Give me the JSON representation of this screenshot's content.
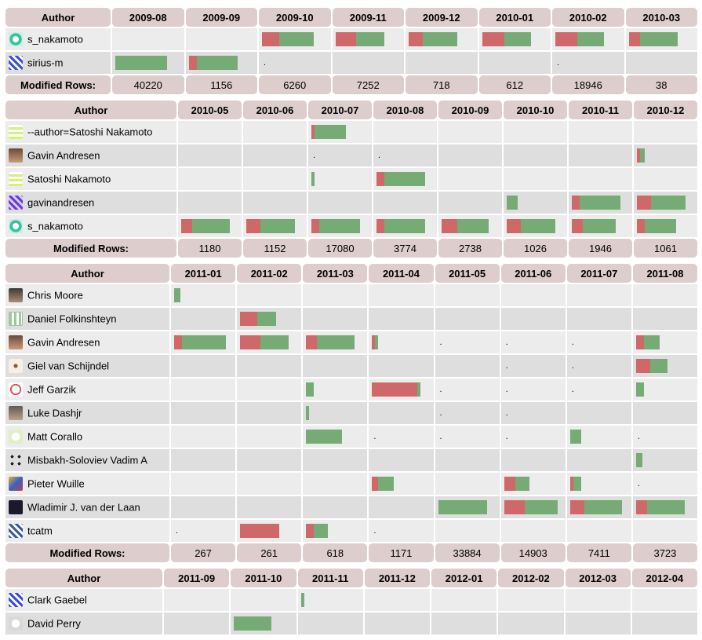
{
  "colors": {
    "header_bg": "#ddcdcd",
    "deleted": "#cf6868",
    "added": "#76ab76",
    "row_a": "#dedede",
    "row_b": "#ececec"
  },
  "labels": {
    "author": "Author",
    "modified_rows": "Modified Rows:"
  },
  "blocks": [
    {
      "months": [
        "2009-08",
        "2009-09",
        "2009-10",
        "2009-11",
        "2009-12",
        "2010-01",
        "2010-02",
        "2010-03"
      ],
      "modified": [
        "40220",
        "1156",
        "6260",
        "7252",
        "718",
        "612",
        "18946",
        "38"
      ],
      "rows": [
        {
          "name": "s_nakamoto",
          "icon": "identicon-teal",
          "cells": [
            null,
            null,
            {
              "d": 22,
              "a": 44
            },
            {
              "d": 26,
              "a": 36
            },
            {
              "d": 18,
              "a": 44
            },
            {
              "d": 28,
              "a": 34
            },
            {
              "d": 28,
              "a": 34
            },
            {
              "d": 14,
              "a": 48
            }
          ]
        },
        {
          "name": "sirius-m",
          "icon": "identicon-blue",
          "cells": [
            {
              "d": 0,
              "a": 66
            },
            {
              "d": 10,
              "a": 52
            },
            "dot",
            null,
            null,
            null,
            "dot",
            null
          ]
        }
      ]
    },
    {
      "months": [
        "2010-05",
        "2010-06",
        "2010-07",
        "2010-08",
        "2010-09",
        "2010-10",
        "2010-11",
        "2010-12"
      ],
      "modified": [
        "1180",
        "1152",
        "17080",
        "3774",
        "2738",
        "1026",
        "1946",
        "1061"
      ],
      "rows": [
        {
          "name": "--author=Satoshi Nakamoto",
          "icon": "identicon-yellow",
          "cells": [
            null,
            null,
            {
              "d": 4,
              "a": 40
            },
            null,
            null,
            null,
            null,
            null
          ]
        },
        {
          "name": "Gavin Andresen",
          "icon": "photo-gavin",
          "cells": [
            null,
            null,
            "dot",
            "dot",
            null,
            null,
            null,
            {
              "d": 4,
              "a": 6
            }
          ]
        },
        {
          "name": "Satoshi Nakamoto",
          "icon": "identicon-yellow",
          "cells": [
            null,
            null,
            {
              "d": 0,
              "a": 4
            },
            {
              "d": 10,
              "a": 52
            },
            null,
            null,
            null,
            null
          ]
        },
        {
          "name": "gavinandresen",
          "icon": "identicon-purple",
          "cells": [
            null,
            null,
            null,
            null,
            null,
            {
              "d": 0,
              "a": 14
            },
            {
              "d": 10,
              "a": 52
            },
            {
              "d": 18,
              "a": 44
            }
          ]
        },
        {
          "name": "s_nakamoto",
          "icon": "identicon-teal",
          "cells": [
            {
              "d": 14,
              "a": 48
            },
            {
              "d": 18,
              "a": 44
            },
            {
              "d": 10,
              "a": 52
            },
            {
              "d": 10,
              "a": 52
            },
            {
              "d": 20,
              "a": 40
            },
            {
              "d": 18,
              "a": 44
            },
            {
              "d": 14,
              "a": 42
            },
            {
              "d": 10,
              "a": 40
            }
          ]
        }
      ]
    },
    {
      "months": [
        "2011-01",
        "2011-02",
        "2011-03",
        "2011-04",
        "2011-05",
        "2011-06",
        "2011-07",
        "2011-08"
      ],
      "modified": [
        "267",
        "261",
        "618",
        "1171",
        "33884",
        "14903",
        "7411",
        "3723"
      ],
      "rows": [
        {
          "name": "Chris Moore",
          "icon": "photo-chris",
          "cells": [
            {
              "d": 0,
              "a": 8
            },
            null,
            null,
            null,
            null,
            null,
            null,
            null
          ]
        },
        {
          "name": "Daniel Folkinshteyn",
          "icon": "identicon-green",
          "cells": [
            null,
            {
              "d": 22,
              "a": 24
            },
            null,
            null,
            null,
            null,
            null,
            null
          ]
        },
        {
          "name": "Gavin Andresen",
          "icon": "photo-gavin",
          "cells": [
            {
              "d": 10,
              "a": 56
            },
            {
              "d": 26,
              "a": 36
            },
            {
              "d": 14,
              "a": 48
            },
            {
              "d": 4,
              "a": 4
            },
            "dot",
            "dot",
            "dot",
            {
              "d": 10,
              "a": 20
            }
          ]
        },
        {
          "name": "Giel van Schijndel",
          "icon": "mosquito",
          "cells": [
            null,
            null,
            null,
            null,
            null,
            "dot",
            "dot",
            {
              "d": 18,
              "a": 22
            }
          ]
        },
        {
          "name": "Jeff Garzik",
          "icon": "identicon-red",
          "cells": [
            null,
            null,
            {
              "d": 0,
              "a": 10
            },
            {
              "d": 58,
              "a": 4
            },
            "dot",
            "dot",
            "dot",
            {
              "d": 0,
              "a": 10
            }
          ]
        },
        {
          "name": "Luke Dashjr",
          "icon": "photo-luke",
          "cells": [
            null,
            null,
            {
              "d": 0,
              "a": 4
            },
            null,
            "dot",
            "dot",
            null,
            null
          ]
        },
        {
          "name": "Matt Corallo",
          "icon": "identicon-light",
          "cells": [
            null,
            null,
            {
              "d": 0,
              "a": 46
            },
            "dot",
            "dot",
            "dot",
            {
              "d": 0,
              "a": 14
            },
            "dot"
          ]
        },
        {
          "name": "Misbakh-Soloviev Vadim A",
          "icon": "dots-black",
          "cells": [
            null,
            null,
            null,
            null,
            null,
            null,
            null,
            {
              "d": 0,
              "a": 8
            }
          ]
        },
        {
          "name": "Pieter Wuille",
          "icon": "photo-pieter",
          "cells": [
            null,
            null,
            null,
            {
              "d": 8,
              "a": 20
            },
            null,
            {
              "d": 14,
              "a": 18
            },
            {
              "d": 4,
              "a": 10
            },
            "dot"
          ]
        },
        {
          "name": "Wladimir J. van der Laan",
          "icon": "photo-wladimir",
          "cells": [
            null,
            null,
            null,
            null,
            {
              "d": 0,
              "a": 62
            },
            {
              "d": 26,
              "a": 42
            },
            {
              "d": 18,
              "a": 48
            },
            {
              "d": 14,
              "a": 48
            }
          ]
        },
        {
          "name": "tcatm",
          "icon": "identicon-navy",
          "cells": [
            "dot",
            {
              "d": 50,
              "a": 0
            },
            {
              "d": 10,
              "a": 18
            },
            "dot",
            null,
            null,
            null,
            null
          ]
        }
      ]
    },
    {
      "months": [
        "2011-09",
        "2011-10",
        "2011-11",
        "2011-12",
        "2012-01",
        "2012-02",
        "2012-03",
        "2012-04"
      ],
      "modified": null,
      "rows": [
        {
          "name": "Clark Gaebel",
          "icon": "identicon-blue",
          "cells": [
            null,
            null,
            {
              "d": 0,
              "a": 4
            },
            null,
            null,
            null,
            null,
            null
          ]
        },
        {
          "name": "David Perry",
          "icon": "identicon-grey",
          "cells": [
            null,
            {
              "d": 0,
              "a": 48
            },
            null,
            null,
            null,
            null,
            null,
            null
          ]
        }
      ]
    }
  ]
}
